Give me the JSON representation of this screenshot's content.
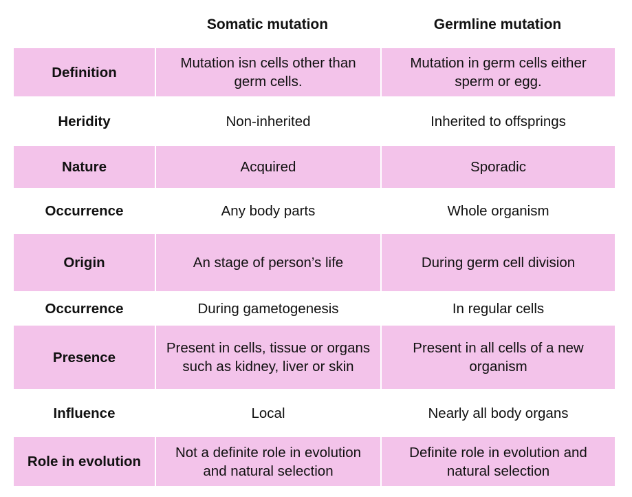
{
  "columns": {
    "somatic": "Somatic mutation",
    "germline": "Germline mutation"
  },
  "rows": [
    {
      "label": "Definition",
      "somatic": "Mutation isn cells other than germ cells.",
      "germline": "Mutation in germ cells either sperm or egg."
    },
    {
      "label": "Heridity",
      "somatic": "Non-inherited",
      "germline": "Inherited to offsprings"
    },
    {
      "label": "Nature",
      "somatic": "Acquired",
      "germline": "Sporadic"
    },
    {
      "label": "Occurrence",
      "somatic": "Any body parts",
      "germline": "Whole organism"
    },
    {
      "label": "Origin",
      "somatic": "An stage of person’s life",
      "germline": "During germ cell division"
    },
    {
      "label": "Occurrence",
      "somatic": "During gametogenesis",
      "germline": "In regular cells"
    },
    {
      "label": "Presence",
      "somatic": "Present in cells, tissue or organs such as kidney, liver or skin",
      "germline": "Present in all cells of a new organism"
    },
    {
      "label": "Influence",
      "somatic": "Local",
      "germline": "Nearly all body organs"
    },
    {
      "label": "Role in evolution",
      "somatic": "Not a definite role in evolution and natural selection",
      "germline": "Definite role in evolution and natural selection"
    }
  ],
  "colors": {
    "shaded_row": "#f3c3ea",
    "background": "#ffffff"
  }
}
